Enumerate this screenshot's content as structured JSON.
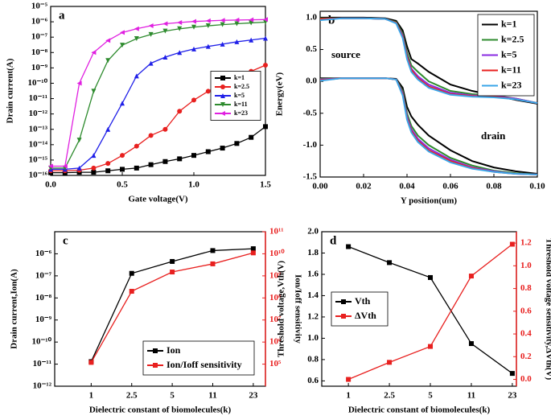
{
  "chart_data": [
    {
      "type": "line",
      "label": "a",
      "xlabel": "Gate voltage(V)",
      "ylabel": "Drain current(A)",
      "ylog": true,
      "legend": "center right",
      "xlim": [
        0,
        1.5
      ],
      "xticks": [
        {
          "value": 0,
          "label": "0.0"
        },
        0.5,
        {
          "value": 1,
          "label": "1.0"
        },
        1.5
      ],
      "ylim": [
        1e-16,
        1e-05
      ],
      "yticks": [
        {
          "value": 1e-16,
          "label": "10⁻¹⁶"
        },
        {
          "value": 1e-15,
          "label": "10⁻¹⁵"
        },
        {
          "value": 1e-14,
          "label": "10⁻¹⁴"
        },
        {
          "value": 1e-13,
          "label": "10⁻¹³"
        },
        {
          "value": 1e-12,
          "label": "10⁻¹²"
        },
        {
          "value": 1e-11,
          "label": "10⁻¹¹"
        },
        {
          "value": 1e-10,
          "label": "10⁻¹⁰"
        },
        {
          "value": 1e-09,
          "label": "10⁻⁹"
        },
        {
          "value": 1e-08,
          "label": "10⁻⁸"
        },
        {
          "value": 1e-07,
          "label": "10⁻⁷"
        },
        {
          "value": 1e-06,
          "label": "10⁻⁶"
        },
        {
          "value": 1e-05,
          "label": "10⁻⁵"
        }
      ],
      "x": [
        0,
        0.1,
        0.2,
        0.3,
        0.4,
        0.5,
        0.6,
        0.7,
        0.8,
        0.9,
        1.0,
        1.1,
        1.2,
        1.3,
        1.4,
        1.5
      ],
      "series": [
        {
          "name": "k=1",
          "color": "#000000",
          "marker": "square",
          "values": [
            1.5e-16,
            1.5e-16,
            1.6e-16,
            1.6e-16,
            2e-16,
            2.5e-16,
            3e-16,
            5e-16,
            8e-16,
            1.2e-15,
            2e-15,
            3.5e-15,
            6e-15,
            1.2e-14,
            3e-14,
            1.5e-13
          ]
        },
        {
          "name": "k=2.5",
          "color": "#e8201f",
          "marker": "circle",
          "values": [
            2e-16,
            2e-16,
            2.2e-16,
            3e-16,
            6e-16,
            2e-15,
            8e-15,
            4e-14,
            1e-13,
            1.5e-12,
            8e-12,
            3e-11,
            1e-10,
            3e-10,
            6e-10,
            1.5e-09
          ]
        },
        {
          "name": "k=5",
          "color": "#1f1fe8",
          "marker": "triangle",
          "values": [
            2.5e-16,
            2.5e-16,
            3e-16,
            2e-15,
            1e-13,
            5e-12,
            3e-10,
            2e-09,
            5e-09,
            1e-08,
            1.7e-08,
            2.5e-08,
            3.5e-08,
            5e-08,
            6.5e-08,
            8.5e-08
          ]
        },
        {
          "name": "k=11",
          "color": "#2e8b2e",
          "marker": "triangle-down",
          "values": [
            3e-16,
            3e-16,
            2e-14,
            3e-11,
            3e-09,
            3e-08,
            8e-08,
            1.5e-07,
            2.5e-07,
            3.5e-07,
            4.5e-07,
            5.5e-07,
            6.5e-07,
            7.5e-07,
            8.5e-07,
            9.5e-07
          ]
        },
        {
          "name": "k=23",
          "color": "#e020e0",
          "marker": "diamond",
          "values": [
            4e-16,
            4e-16,
            1e-10,
            1e-08,
            6e-08,
            2e-07,
            3.5e-07,
            5.5e-07,
            7.5e-07,
            9e-07,
            1.05e-06,
            1.15e-06,
            1.25e-06,
            1.3e-06,
            1.35e-06,
            1.4e-06
          ]
        }
      ]
    },
    {
      "type": "line",
      "label": "b",
      "xlabel": "Y position(um)",
      "ylabel": "Energy(eV)",
      "ylog": false,
      "legend": "top right",
      "annotations": [
        "source",
        "drain"
      ],
      "xlim": [
        0,
        0.1
      ],
      "xticks": [
        {
          "value": 0,
          "label": "0.00"
        },
        {
          "value": 0.02,
          "label": "0.02"
        },
        {
          "value": 0.04,
          "label": "0.04"
        },
        {
          "value": 0.06,
          "label": "0.06"
        },
        {
          "value": 0.08,
          "label": "0.08"
        },
        {
          "value": 0.1,
          "label": "0.10"
        }
      ],
      "ylim": [
        -1.5,
        1.1
      ],
      "yticks": [
        -1.5,
        {
          "value": -1,
          "label": "-1.0"
        },
        -0.5,
        {
          "value": 0,
          "label": "0.0"
        },
        0.5,
        {
          "value": 1,
          "label": "1.0"
        }
      ],
      "x": [
        0,
        0.01,
        0.02,
        0.03,
        0.035,
        0.038,
        0.04,
        0.042,
        0.045,
        0.05,
        0.06,
        0.07,
        0.08,
        0.09,
        0.1
      ],
      "series": [
        {
          "name": "k=1",
          "color": "#000000",
          "values": [
            1,
            1,
            1,
            0.99,
            0.95,
            0.8,
            0.55,
            0.35,
            0.28,
            0.15,
            -0.05,
            -0.15,
            -0.22,
            -0.29,
            -0.35
          ],
          "lower_values": [
            0.05,
            0.05,
            0.05,
            0.05,
            0.04,
            -0.1,
            -0.4,
            -0.55,
            -0.68,
            -0.85,
            -1.08,
            -1.25,
            -1.35,
            -1.41,
            -1.45
          ]
        },
        {
          "name": "k=2.5",
          "color": "#2e8b2e",
          "values": [
            0.99,
            0.99,
            0.99,
            0.98,
            0.93,
            0.75,
            0.45,
            0.25,
            0.15,
            0,
            -0.15,
            -0.2,
            -0.22,
            -0.27,
            -0.34
          ],
          "lower_values": [
            0.04,
            0.05,
            0.05,
            0.05,
            0.03,
            -0.15,
            -0.5,
            -0.7,
            -0.85,
            -1.0,
            -1.2,
            -1.32,
            -1.4,
            -1.44,
            -1.46
          ]
        },
        {
          "name": "k=5",
          "color": "#8a2be2",
          "values": [
            0.98,
            0.99,
            0.99,
            0.98,
            0.92,
            0.72,
            0.4,
            0.2,
            0.08,
            -0.05,
            -0.18,
            -0.22,
            -0.23,
            -0.27,
            -0.34
          ],
          "lower_values": [
            0.03,
            0.05,
            0.05,
            0.05,
            0.03,
            -0.18,
            -0.55,
            -0.75,
            -0.9,
            -1.05,
            -1.23,
            -1.35,
            -1.41,
            -1.45,
            -1.46
          ]
        },
        {
          "name": "k=11",
          "color": "#e8201f",
          "values": [
            0.98,
            0.99,
            0.99,
            0.98,
            0.92,
            0.7,
            0.38,
            0.18,
            0.05,
            -0.08,
            -0.2,
            -0.23,
            -0.24,
            -0.28,
            -0.34
          ],
          "lower_values": [
            0.02,
            0.05,
            0.05,
            0.05,
            0.03,
            -0.2,
            -0.58,
            -0.78,
            -0.93,
            -1.08,
            -1.25,
            -1.36,
            -1.42,
            -1.45,
            -1.46
          ]
        },
        {
          "name": "k=23",
          "color": "#3aa6e8",
          "values": [
            0.96,
            0.99,
            0.99,
            0.98,
            0.91,
            0.68,
            0.35,
            0.15,
            0.03,
            -0.1,
            -0.21,
            -0.24,
            -0.25,
            -0.28,
            -0.34
          ],
          "lower_values": [
            0.01,
            0.05,
            0.05,
            0.05,
            0.03,
            -0.22,
            -0.6,
            -0.8,
            -0.95,
            -1.1,
            -1.27,
            -1.37,
            -1.42,
            -1.45,
            -1.46
          ]
        }
      ]
    },
    {
      "type": "line",
      "label": "c",
      "xlabel": "Dielectric constant of biomolecules(k)",
      "ylabel": "Drain current,Ion(A)",
      "y2label": "Ion/Ioff sensitivity",
      "ylog": true,
      "y2log": true,
      "legend": "bottom right",
      "categories": [
        "1",
        "2.5",
        "5",
        "11",
        "23"
      ],
      "ylim": [
        1e-12,
        1e-05
      ],
      "yticks": [
        {
          "value": 1e-12,
          "label": "10⁻¹²"
        },
        {
          "value": 1e-11,
          "label": "10⁻¹¹"
        },
        {
          "value": 1e-10,
          "label": "10⁻¹⁰"
        },
        {
          "value": 1e-09,
          "label": "10⁻⁹"
        },
        {
          "value": 1e-08,
          "label": "10⁻⁸"
        },
        {
          "value": 1e-07,
          "label": "10⁻⁷"
        },
        {
          "value": 1e-06,
          "label": "10⁻⁶"
        }
      ],
      "y2lim": [
        10000.0,
        100000000000.0
      ],
      "y2ticks": [
        {
          "value": 100000.0,
          "label": "10⁵"
        },
        {
          "value": 1000000.0,
          "label": "10⁶"
        },
        {
          "value": 10000000.0,
          "label": "10⁷"
        },
        {
          "value": 100000000.0,
          "label": "10⁸"
        },
        {
          "value": 1000000000.0,
          "label": "10⁹"
        },
        {
          "value": 10000000000.0,
          "label": "10¹⁰"
        },
        {
          "value": 100000000000.0,
          "label": "10¹¹"
        }
      ],
      "series": [
        {
          "name": "Ion",
          "color": "#000000",
          "marker": "square",
          "values": [
            1.3e-11,
            1.3e-07,
            4.5e-07,
            1.4e-06,
            1.7e-06
          ]
        },
        {
          "name": "Ion/Ioff sensitivity",
          "color": "#e8201f",
          "marker": "square",
          "axis": "y2",
          "values": [
            120000.0,
            200000000.0,
            1500000000.0,
            3500000000.0,
            11000000000.0
          ]
        }
      ]
    },
    {
      "type": "line",
      "label": "d",
      "xlabel": "Dielectric constant of biomolecules(k)",
      "ylabel": "Threshold voltage,Vth(V)",
      "y2label": "Threshold voltage sensitivity,ΔVth(V)",
      "ylog": false,
      "y2log": false,
      "legend": "center left",
      "categories": [
        "1",
        "2.5",
        "5",
        "11",
        "23"
      ],
      "ylim": [
        0.55,
        2.0
      ],
      "yticks": [
        0.6,
        0.8,
        {
          "value": 1,
          "label": "1.0"
        },
        1.2,
        1.4,
        1.6,
        1.8,
        {
          "value": 2,
          "label": "2.0"
        }
      ],
      "y2lim": [
        -0.06,
        1.3
      ],
      "y2ticks": [
        {
          "value": 0,
          "label": "0.0"
        },
        0.2,
        0.4,
        0.6,
        0.8,
        {
          "value": 1,
          "label": "1.0"
        },
        1.2
      ],
      "series": [
        {
          "name": "Vth",
          "color": "#000000",
          "marker": "square",
          "values": [
            1.86,
            1.71,
            1.57,
            0.95,
            0.67
          ]
        },
        {
          "name": "ΔVth",
          "color": "#e8201f",
          "marker": "square",
          "axis": "y2",
          "values": [
            0,
            0.15,
            0.29,
            0.91,
            1.19
          ]
        }
      ]
    }
  ]
}
